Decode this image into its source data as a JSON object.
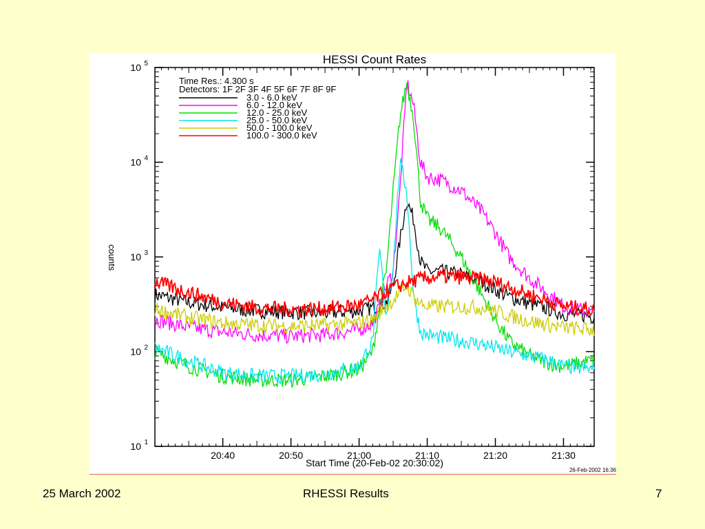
{
  "footer": {
    "date": "25 March 2002",
    "title": "RHESSI Results",
    "page": "7"
  },
  "chart_data": {
    "type": "line",
    "title": "HESSI Count Rates",
    "xlabel": "Start Time (20-Feb-02 20:30:02)",
    "ylabel": "counts",
    "yscale": "log",
    "ylim": [
      10,
      100000
    ],
    "xlim": [
      "20:30:02",
      "21:34:30"
    ],
    "x_ticks": [
      "20:40",
      "20:50",
      "21:00",
      "21:10",
      "21:20",
      "21:30"
    ],
    "y_ticks": [
      {
        "base": "10",
        "exp": "1"
      },
      {
        "base": "10",
        "exp": "2"
      },
      {
        "base": "10",
        "exp": "3"
      },
      {
        "base": "10",
        "exp": "4"
      },
      {
        "base": "10",
        "exp": "5"
      }
    ],
    "annotations": {
      "time_res": "Time Res.: 4.300 s",
      "detectors": "Detectors: 1F 2F 3F 4F 5F 6F 7F 8F 9F",
      "plot_date": "26-Feb-2002 16:36"
    },
    "legend_position": "top-left",
    "x": [
      "20:30",
      "20:35",
      "20:40",
      "20:45",
      "20:50",
      "20:55",
      "21:00",
      "21:02",
      "21:03",
      "21:04",
      "21:05",
      "21:06",
      "21:07",
      "21:08",
      "21:09",
      "21:10",
      "21:12",
      "21:15",
      "21:18",
      "21:20",
      "21:22",
      "21:25",
      "21:28",
      "21:30",
      "21:34"
    ],
    "series": [
      {
        "name": "3.0  -  6.0 keV",
        "color": "#000000",
        "values": [
          400,
          330,
          290,
          270,
          260,
          255,
          270,
          290,
          310,
          330,
          500,
          1500,
          4000,
          2500,
          900,
          700,
          700,
          650,
          550,
          450,
          380,
          320,
          280,
          250,
          240
        ]
      },
      {
        "name": "6.0  -  12.0 keV",
        "color": "#ff00ff",
        "values": [
          220,
          180,
          160,
          150,
          145,
          150,
          170,
          200,
          300,
          500,
          700,
          5000,
          70000,
          40000,
          10000,
          7000,
          6500,
          5000,
          3000,
          1800,
          1000,
          600,
          400,
          300,
          260
        ]
      },
      {
        "name": "12.0  -  25.0 keV",
        "color": "#00dd00",
        "values": [
          100,
          70,
          55,
          50,
          50,
          55,
          65,
          100,
          300,
          700,
          5000,
          30000,
          70000,
          30000,
          4000,
          2500,
          2000,
          1000,
          400,
          220,
          130,
          90,
          75,
          70,
          80
        ]
      },
      {
        "name": "25.0  -  50.0 keV",
        "color": "#00e5ee",
        "values": [
          110,
          80,
          60,
          55,
          55,
          58,
          70,
          130,
          1200,
          250,
          800,
          10000,
          5000,
          400,
          160,
          150,
          140,
          130,
          120,
          110,
          100,
          90,
          80,
          70,
          65
        ]
      },
      {
        "name": "50.0  -  100.0 keV",
        "color": "#cccc00",
        "values": [
          280,
          230,
          200,
          190,
          185,
          190,
          200,
          220,
          260,
          300,
          350,
          420,
          500,
          380,
          320,
          300,
          300,
          300,
          290,
          270,
          240,
          210,
          190,
          180,
          170
        ]
      },
      {
        "name": "100.0  -  300.0 keV",
        "color": "#ff0000",
        "values": [
          550,
          420,
          330,
          290,
          280,
          285,
          310,
          350,
          390,
          430,
          470,
          500,
          530,
          560,
          580,
          600,
          620,
          610,
          580,
          540,
          480,
          400,
          340,
          300,
          280
        ]
      }
    ]
  }
}
